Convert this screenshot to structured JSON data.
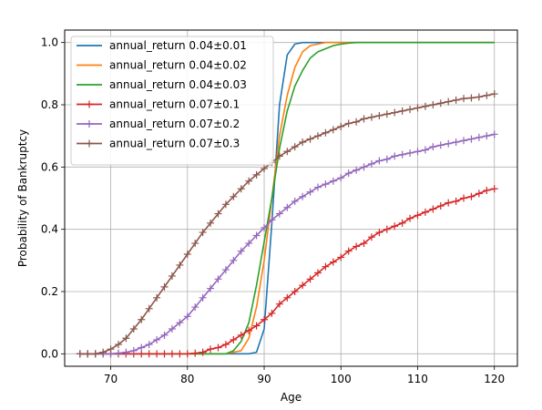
{
  "chart_data": {
    "type": "line",
    "title": "",
    "xlabel": "Age",
    "ylabel": "Probability of Bankruptcy",
    "xlim": [
      64,
      123
    ],
    "ylim": [
      -0.04,
      1.04
    ],
    "xticks": [
      70,
      80,
      90,
      100,
      110,
      120
    ],
    "yticks": [
      0.0,
      0.2,
      0.4,
      0.6,
      0.8,
      1.0
    ],
    "xtick_labels": [
      "70",
      "80",
      "90",
      "100",
      "110",
      "120"
    ],
    "ytick_labels": [
      "0.0",
      "0.2",
      "0.4",
      "0.6",
      "0.8",
      "1.0"
    ],
    "grid": true,
    "legend_position": "upper-left",
    "series": [
      {
        "name": "annual_return 0.04±0.01",
        "color": "#1f77b4",
        "marker": "none",
        "x": [
          66,
          70,
          75,
          80,
          85,
          88,
          89,
          90,
          91,
          92,
          93,
          94,
          95,
          96,
          100,
          110,
          120
        ],
        "y": [
          0,
          0,
          0,
          0,
          0,
          0.0,
          0.005,
          0.08,
          0.42,
          0.8,
          0.96,
          0.995,
          1.0,
          1.0,
          1.0,
          1.0,
          1.0
        ]
      },
      {
        "name": "annual_return 0.04±0.02",
        "color": "#ff7f0e",
        "marker": "none",
        "x": [
          66,
          70,
          75,
          80,
          85,
          87,
          88,
          89,
          90,
          91,
          92,
          93,
          94,
          95,
          96,
          97,
          98,
          100,
          110,
          120
        ],
        "y": [
          0,
          0,
          0,
          0,
          0,
          0.01,
          0.05,
          0.15,
          0.3,
          0.5,
          0.7,
          0.83,
          0.92,
          0.97,
          0.99,
          0.995,
          1.0,
          1.0,
          1.0,
          1.0
        ]
      },
      {
        "name": "annual_return 0.04±0.03",
        "color": "#2ca02c",
        "marker": "none",
        "x": [
          66,
          70,
          75,
          80,
          85,
          86,
          87,
          88,
          89,
          90,
          91,
          92,
          93,
          94,
          95,
          96,
          97,
          98,
          99,
          100,
          101,
          102,
          103,
          110,
          120
        ],
        "y": [
          0,
          0,
          0,
          0,
          0,
          0.01,
          0.04,
          0.1,
          0.22,
          0.36,
          0.5,
          0.66,
          0.78,
          0.86,
          0.91,
          0.95,
          0.97,
          0.98,
          0.99,
          0.995,
          0.998,
          1.0,
          1.0,
          1.0,
          1.0
        ]
      },
      {
        "name": "annual_return 0.07±0.1",
        "color": "#d62728",
        "marker": "plus",
        "x": [
          66,
          67,
          68,
          69,
          70,
          71,
          72,
          73,
          74,
          75,
          76,
          77,
          78,
          79,
          80,
          81,
          82,
          83,
          84,
          85,
          86,
          87,
          88,
          89,
          90,
          91,
          92,
          93,
          94,
          95,
          96,
          97,
          98,
          99,
          100,
          101,
          102,
          103,
          104,
          105,
          106,
          107,
          108,
          109,
          110,
          111,
          112,
          113,
          114,
          115,
          116,
          117,
          118,
          119,
          120
        ],
        "y": [
          0,
          0,
          0,
          0,
          0,
          0,
          0,
          0,
          0,
          0,
          0,
          0,
          0,
          0,
          0,
          0.002,
          0.005,
          0.015,
          0.02,
          0.03,
          0.045,
          0.06,
          0.075,
          0.09,
          0.11,
          0.13,
          0.16,
          0.18,
          0.2,
          0.22,
          0.24,
          0.26,
          0.28,
          0.295,
          0.31,
          0.33,
          0.345,
          0.355,
          0.375,
          0.39,
          0.4,
          0.41,
          0.42,
          0.435,
          0.445,
          0.455,
          0.465,
          0.475,
          0.485,
          0.49,
          0.5,
          0.505,
          0.515,
          0.525,
          0.53
        ]
      },
      {
        "name": "annual_return 0.07±0.2",
        "color": "#9467bd",
        "marker": "plus",
        "x": [
          66,
          67,
          68,
          69,
          70,
          71,
          72,
          73,
          74,
          75,
          76,
          77,
          78,
          79,
          80,
          81,
          82,
          83,
          84,
          85,
          86,
          87,
          88,
          89,
          90,
          91,
          92,
          93,
          94,
          95,
          96,
          97,
          98,
          99,
          100,
          101,
          102,
          103,
          104,
          105,
          106,
          107,
          108,
          109,
          110,
          111,
          112,
          113,
          114,
          115,
          116,
          117,
          118,
          119,
          120
        ],
        "y": [
          0,
          0,
          0,
          0,
          0,
          0.002,
          0.005,
          0.01,
          0.02,
          0.03,
          0.045,
          0.06,
          0.08,
          0.1,
          0.12,
          0.15,
          0.18,
          0.21,
          0.24,
          0.27,
          0.3,
          0.33,
          0.355,
          0.38,
          0.405,
          0.43,
          0.45,
          0.47,
          0.49,
          0.505,
          0.52,
          0.535,
          0.545,
          0.555,
          0.565,
          0.58,
          0.59,
          0.6,
          0.61,
          0.62,
          0.625,
          0.635,
          0.64,
          0.645,
          0.65,
          0.655,
          0.665,
          0.67,
          0.675,
          0.68,
          0.685,
          0.69,
          0.695,
          0.7,
          0.705
        ]
      },
      {
        "name": "annual_return 0.07±0.3",
        "color": "#8c564b",
        "marker": "plus",
        "x": [
          66,
          67,
          68,
          69,
          70,
          71,
          72,
          73,
          74,
          75,
          76,
          77,
          78,
          79,
          80,
          81,
          82,
          83,
          84,
          85,
          86,
          87,
          88,
          89,
          90,
          91,
          92,
          93,
          94,
          95,
          96,
          97,
          98,
          99,
          100,
          101,
          102,
          103,
          104,
          105,
          106,
          107,
          108,
          109,
          110,
          111,
          112,
          113,
          114,
          115,
          116,
          117,
          118,
          119,
          120
        ],
        "y": [
          0,
          0,
          0,
          0.005,
          0.015,
          0.03,
          0.05,
          0.08,
          0.11,
          0.145,
          0.18,
          0.215,
          0.25,
          0.285,
          0.32,
          0.355,
          0.39,
          0.42,
          0.45,
          0.48,
          0.505,
          0.53,
          0.555,
          0.575,
          0.595,
          0.615,
          0.635,
          0.65,
          0.665,
          0.68,
          0.69,
          0.7,
          0.71,
          0.72,
          0.73,
          0.74,
          0.745,
          0.755,
          0.76,
          0.765,
          0.77,
          0.775,
          0.78,
          0.785,
          0.79,
          0.795,
          0.8,
          0.805,
          0.81,
          0.815,
          0.82,
          0.822,
          0.825,
          0.83,
          0.835
        ]
      }
    ]
  }
}
